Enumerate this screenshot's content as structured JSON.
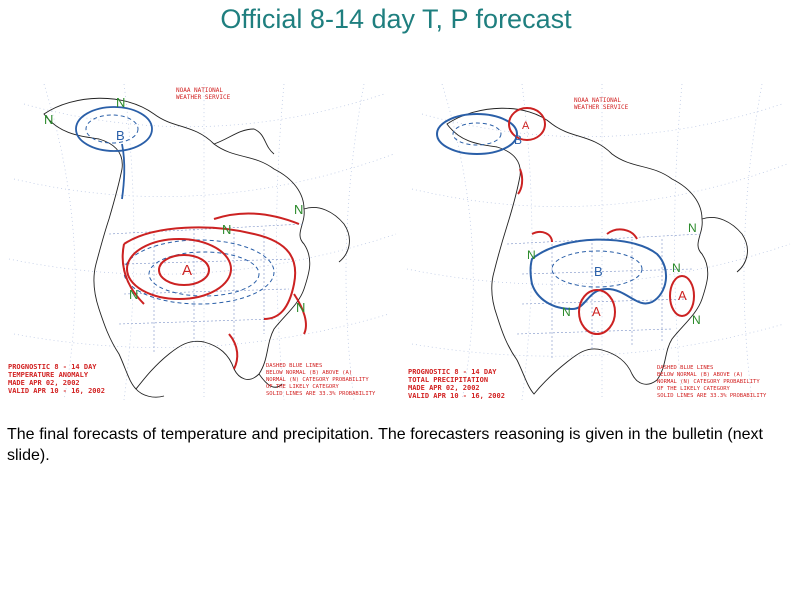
{
  "slide": {
    "title": "Official 8-14 day T, P forecast",
    "caption": "The final forecasts of temperature and precipitation.  The forecasters reasoning is given in the bulletin (next slide)."
  },
  "maps": [
    {
      "header": [
        "NOAA NATIONAL",
        "WEATHER SERVICE"
      ],
      "product": [
        "PROGNOSTIC 8 - 14 DAY",
        "TEMPERATURE ANOMALY",
        "MADE  APR 02, 2002",
        "VALID  APR 10 - 16, 2002"
      ],
      "legend": [
        "DASHED BLUE LINES",
        "BELOW NORMAL (B) ABOVE (A)",
        "NORMAL (N) CATEGORY PROBABILITY",
        "OF THE LIKELY CATEGORY",
        "SOLID LINES ARE 33.3% PROBABILITY"
      ],
      "regions": [
        {
          "label": "A",
          "type": "above"
        },
        {
          "label": "B",
          "type": "below"
        },
        {
          "label": "N",
          "type": "normal"
        }
      ]
    },
    {
      "header": [
        "NOAA NATIONAL",
        "WEATHER SERVICE"
      ],
      "product": [
        "PROGNOSTIC 8 - 14 DAY",
        "TOTAL PRECIPITATION",
        "MADE  APR 02, 2002",
        "VALID  APR 10 - 16, 2002"
      ],
      "legend": [
        "DASHED BLUE LINES",
        "BELOW NORMAL (B) ABOVE (A)",
        "NORMAL (N) CATEGORY PROBABILITY",
        "OF THE LIKELY CATEGORY",
        "SOLID LINES ARE 33.3% PROBABILITY"
      ],
      "regions": [
        {
          "label": "A",
          "type": "above"
        },
        {
          "label": "B",
          "type": "below"
        },
        {
          "label": "N",
          "type": "normal"
        }
      ]
    }
  ],
  "colors": {
    "title": "#1f7f7f",
    "above": "#cc2222",
    "below": "#2a5fa8",
    "normal": "#2a8a2a",
    "map_lines": "#6b88c4",
    "text_red": "#d22222"
  }
}
